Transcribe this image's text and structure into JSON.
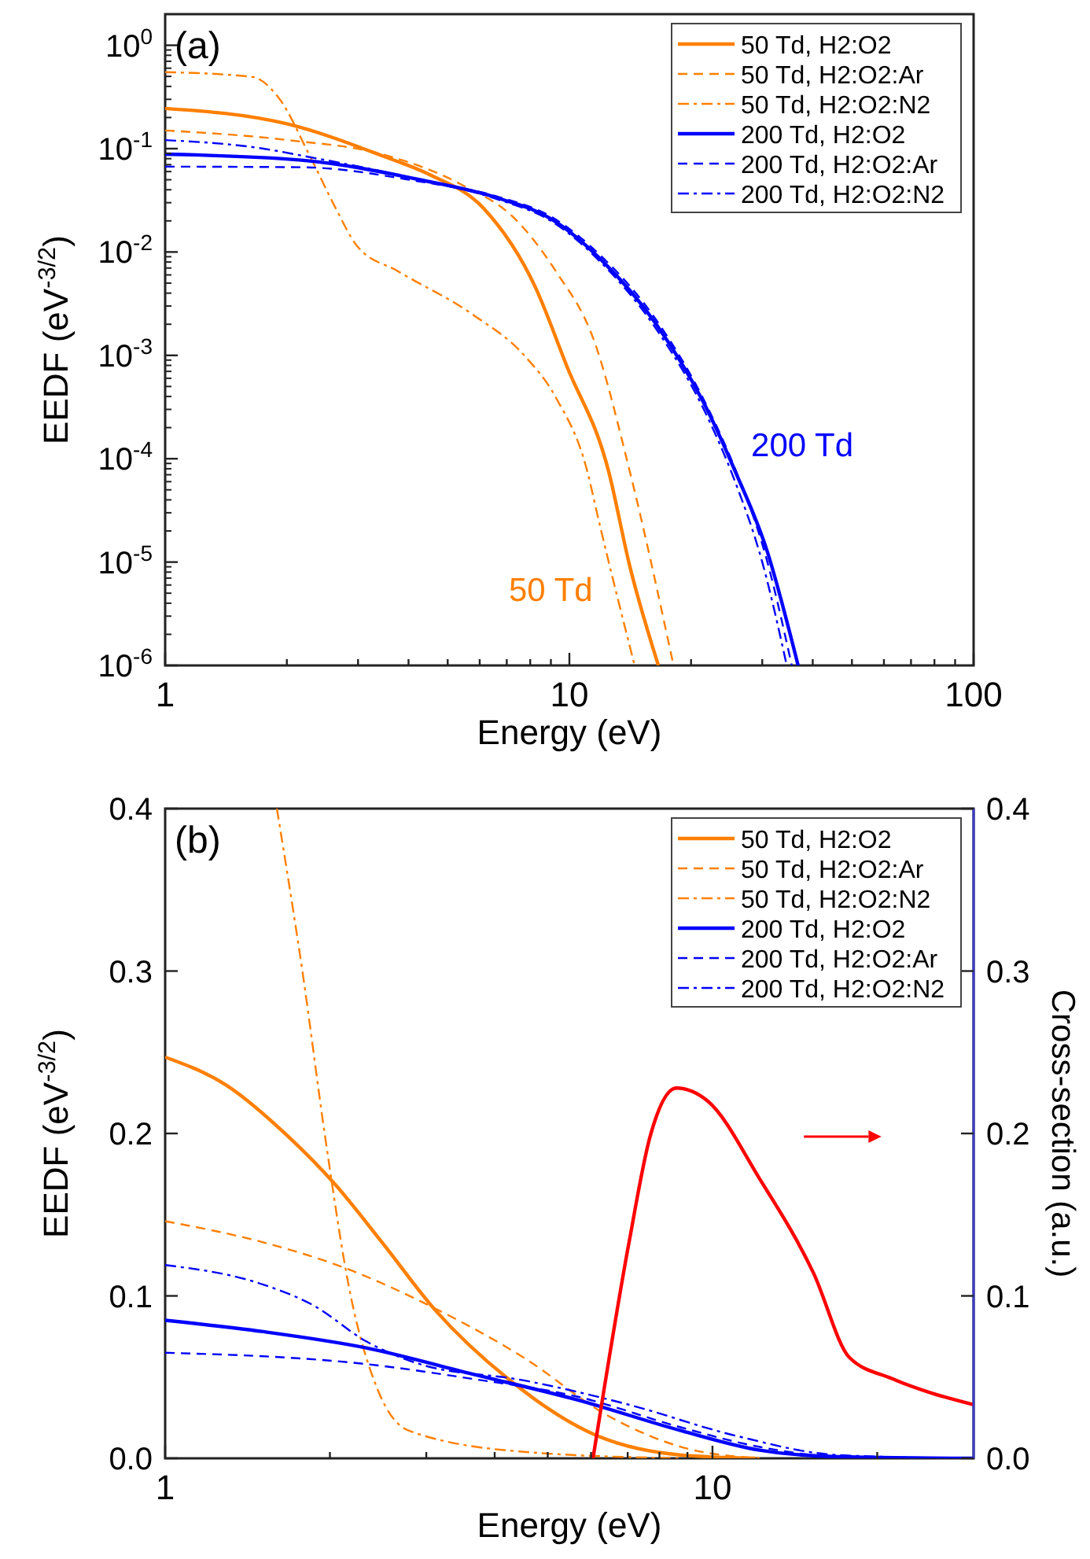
{
  "chart_data": [
    {
      "type": "line",
      "xlabel": "Energy (eV)",
      "ylabel": "EEDF (eV$^{-3/2}$)",
      "log": "xy",
      "xlim": [
        1,
        100
      ],
      "ylim": [
        1e-06,
        2
      ],
      "xticks": [
        1,
        {
          "value": 2,
          "label": null
        },
        {
          "value": 3,
          "label": null
        },
        {
          "value": 4,
          "label": null
        },
        {
          "value": 5,
          "label": null
        },
        {
          "value": 6,
          "label": null
        },
        {
          "value": 7,
          "label": null
        },
        {
          "value": 8,
          "label": null
        },
        {
          "value": 9,
          "label": null
        },
        10,
        {
          "value": 20,
          "label": null
        },
        {
          "value": 30,
          "label": null
        },
        {
          "value": 40,
          "label": null
        },
        {
          "value": 50,
          "label": null
        },
        {
          "value": 60,
          "label": null
        },
        {
          "value": 70,
          "label": null
        },
        {
          "value": 80,
          "label": null
        },
        {
          "value": 90,
          "label": null
        },
        100
      ],
      "yticks": [
        {
          "value": 1e-06,
          "label": "10$^{-6}$"
        },
        {
          "value": 1e-05,
          "label": "10$^{-5}$"
        },
        {
          "value": 0.0001,
          "label": "10$^{-4}$"
        },
        {
          "value": 0.001,
          "label": "10$^{-3}$"
        },
        {
          "value": 0.01,
          "label": "10$^{-2}$"
        },
        {
          "value": 0.1,
          "label": "10$^{-1}$"
        },
        {
          "value": 1,
          "label": "10$^{0}$"
        }
      ],
      "legend": "top right",
      "grid": false,
      "series": [
        {
          "name": "50 Td, H2:O2",
          "color": "#ff7f00",
          "line_style": "solid",
          "x": [
            1,
            2.01,
            3.45,
            4.51,
            6.12,
            8.23,
            9.85,
            12.5,
            14.1,
            16.6
          ],
          "values": [
            0.245,
            0.173,
            0.085,
            0.056,
            0.0267,
            0.0046,
            0.00079,
            7.6e-05,
            9.2e-06,
            1e-06
          ]
        },
        {
          "name": "50 Td, H2:O2:Ar",
          "color": "#ff7f00",
          "line_style": "dashed",
          "x": [
            1,
            2.01,
            3.45,
            5.4,
            7.33,
            9.26,
            11.5,
            14.1,
            18.1
          ],
          "values": [
            0.15,
            0.121,
            0.088,
            0.045,
            0.021,
            0.0065,
            0.0014,
            7.6e-05,
            1e-06
          ]
        },
        {
          "name": "50 Td, H2:O2:N2",
          "color": "#ff7f00",
          "line_style": "dashdot",
          "x": [
            1,
            1.64,
            1.91,
            2.28,
            2.64,
            2.98,
            3.77,
            5.75,
            7.73,
            9.26,
            11.07,
            11.8,
            14.5
          ],
          "values": [
            0.55,
            0.495,
            0.31,
            0.085,
            0.0267,
            0.0115,
            0.0065,
            0.0025,
            0.001,
            0.00039,
            7.6e-05,
            2.6e-05,
            1e-06
          ]
        },
        {
          "name": "200 Td, H2:O2",
          "color": "#0000ff",
          "line_style": "solid",
          "x": [
            1,
            2.2,
            4.27,
            6.7,
            9,
            12.1,
            16.4,
            22.1,
            25.7,
            30.8,
            36.8
          ],
          "values": [
            0.0885,
            0.077,
            0.05,
            0.033,
            0.021,
            0.0081,
            0.002,
            0.00028,
            7.6e-05,
            1.3e-05,
            1e-06
          ]
        },
        {
          "name": "200 Td, H2:O2:Ar",
          "color": "#0000ff",
          "line_style": "dashed",
          "x": [
            1,
            2.2,
            4.27,
            6.7,
            9,
            12.1,
            16.4,
            22.1,
            25.7,
            30.5,
            35.5
          ],
          "values": [
            0.067,
            0.066,
            0.048,
            0.034,
            0.022,
            0.0088,
            0.0022,
            0.0003,
            8e-05,
            1.2e-05,
            1e-06
          ]
        },
        {
          "name": "200 Td, H2:O2:N2",
          "color": "#0000ff",
          "line_style": "dashdot",
          "x": [
            1,
            1.75,
            2.2,
            4.27,
            6.7,
            9,
            12.1,
            16.4,
            22.1,
            25.7,
            30,
            34.5
          ],
          "values": [
            0.121,
            0.1,
            0.085,
            0.05,
            0.032,
            0.02,
            0.0076,
            0.0018,
            0.00024,
            6e-05,
            1e-05,
            1e-06
          ]
        }
      ],
      "annotations": [
        "(a)",
        "50 Td",
        "200 Td"
      ]
    },
    {
      "type": "line",
      "xlabel": "Energy (eV)",
      "ylabel": "EEDF (eV$^{-3/2}$)",
      "y2label": "Cross-section (a.u.)",
      "log": "x",
      "xlim": [
        1,
        30
      ],
      "ylim": [
        0,
        0.4
      ],
      "y2lim": [
        0,
        0.4
      ],
      "xticks": [
        1,
        {
          "value": 2,
          "label": null
        },
        {
          "value": 3,
          "label": null
        },
        {
          "value": 4,
          "label": null
        },
        {
          "value": 5,
          "label": null
        },
        {
          "value": 6,
          "label": null
        },
        {
          "value": 7,
          "label": null
        },
        {
          "value": 8,
          "label": null
        },
        {
          "value": 9,
          "label": null
        },
        10,
        {
          "value": 20,
          "label": null
        }
      ],
      "yticks": [
        {
          "value": 0,
          "label": "0.0"
        },
        {
          "value": 0.1,
          "label": "0.1"
        },
        {
          "value": 0.2,
          "label": "0.2"
        },
        {
          "value": 0.3,
          "label": "0.3"
        },
        {
          "value": 0.4,
          "label": "0.4"
        }
      ],
      "y2ticks": [
        {
          "value": 0,
          "label": "0.0"
        },
        {
          "value": 0.1,
          "label": "0.1"
        },
        {
          "value": 0.2,
          "label": "0.2"
        },
        {
          "value": 0.3,
          "label": "0.3"
        },
        {
          "value": 0.4,
          "label": "0.4"
        }
      ],
      "legend": "top right",
      "grid": false,
      "series": [
        {
          "name": "50 Td, H2:O2",
          "color": "#ff7f00",
          "line_style": "solid",
          "x": [
            1,
            1.29,
            1.68,
            2.04,
            2.49,
            3.12,
            4.23,
            6.05,
            8.77,
            12
          ],
          "values": [
            0.247,
            0.23,
            0.198,
            0.169,
            0.133,
            0.091,
            0.049,
            0.015,
            0.002,
            0
          ]
        },
        {
          "name": "50 Td, H2:O2:Ar",
          "color": "#ff7f00",
          "line_style": "dashed",
          "x": [
            1,
            1.51,
            2.1,
            3.04,
            4.52,
            6.46,
            8.77,
            12.2
          ],
          "values": [
            0.146,
            0.133,
            0.118,
            0.094,
            0.062,
            0.026,
            0.007,
            0
          ]
        },
        {
          "name": "50 Td, H2:O2:N2",
          "color": "#ff7f00",
          "line_style": "dashdot",
          "x": [
            1.6,
            1.79,
            1.96,
            2.18,
            2.44,
            2.79,
            4.52,
            8.77
          ],
          "values": [
            0.4,
            0.295,
            0.198,
            0.101,
            0.043,
            0.017,
            0.004,
            0
          ]
        },
        {
          "name": "200 Td, H2:O2",
          "color": "#0000ff",
          "line_style": "solid",
          "x": [
            1,
            1.51,
            2.33,
            3.63,
            5.66,
            8.77,
            12.2,
            17,
            30
          ],
          "values": [
            0.085,
            0.078,
            0.068,
            0.052,
            0.036,
            0.017,
            0.005,
            0.001,
            0
          ]
        },
        {
          "name": "200 Td, H2:O2:Ar",
          "color": "#0000ff",
          "line_style": "dashed",
          "x": [
            1,
            2.33,
            3.63,
            5.66,
            8.77,
            12.2,
            17,
            30
          ],
          "values": [
            0.065,
            0.058,
            0.049,
            0.038,
            0.019,
            0.007,
            0.001,
            0
          ]
        },
        {
          "name": "200 Td, H2:O2:N2",
          "color": "#0000ff",
          "line_style": "dashdot",
          "x": [
            1,
            1.51,
            1.87,
            2.33,
            2.92,
            4.52,
            7.04,
            11,
            17,
            30
          ],
          "values": [
            0.119,
            0.107,
            0.094,
            0.072,
            0.058,
            0.048,
            0.033,
            0.014,
            0.002,
            0
          ]
        },
        {
          "color": "#ff0000",
          "line_style": "solid",
          "axis": "y2",
          "x": [
            6.05,
            7.04,
            7.69,
            8.59,
            9.8,
            12.2,
            15.3,
            17.8,
            21.3,
            30
          ],
          "values": [
            0,
            0.133,
            0.198,
            0.228,
            0.22,
            0.172,
            0.114,
            0.062,
            0.049,
            0.033
          ]
        }
      ],
      "annotations": [
        "(b)"
      ]
    }
  ]
}
